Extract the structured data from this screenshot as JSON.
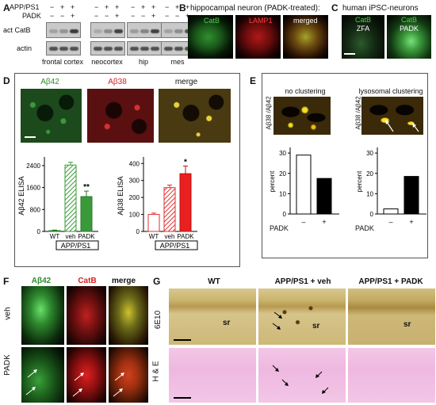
{
  "panel_letters": {
    "a": "A",
    "b": "B",
    "c": "C",
    "d": "D",
    "e": "E",
    "f": "F",
    "g": "G"
  },
  "panelA": {
    "row_app": "APP/PS1",
    "row_padk": "PADK",
    "row1_label": "act CatB",
    "row2_label": "actin",
    "regions": [
      "frontal cortex",
      "neocortex",
      "hip",
      "mes"
    ],
    "app_signs": [
      "−",
      "+",
      "+",
      "−",
      "+",
      "+",
      "−",
      "+",
      "+",
      "−",
      "+",
      "+"
    ],
    "padk_signs": [
      "−",
      "−",
      "+",
      "−",
      "−",
      "+",
      "−",
      "−",
      "+",
      "−",
      "−",
      "+"
    ],
    "catb_intensity": [
      0.25,
      0.35,
      0.95,
      0.2,
      0.4,
      0.9,
      0.3,
      0.45,
      0.9,
      0.25,
      0.4,
      0.8
    ]
  },
  "panelB": {
    "title": "hippocampal neuron (PADK-treated):",
    "labels": [
      "CatB",
      "LAMP1",
      "merged"
    ]
  },
  "panelC": {
    "title": "human iPSC-neurons",
    "labels": [
      "CatB",
      "CatB"
    ],
    "sublabels": [
      "ZFA",
      "PADK"
    ]
  },
  "panelD": {
    "labels": [
      "Aβ42",
      "Aβ38",
      "merge"
    ],
    "chart_left": {
      "ylabel": "Aβ42 ELISA",
      "yticks": [
        "0",
        "800",
        "1600",
        "2400"
      ],
      "categories": [
        "WT",
        "veh",
        "PADK"
      ],
      "values": [
        30,
        2420,
        1270
      ],
      "errors": [
        20,
        100,
        200
      ],
      "sig": "**",
      "group_label": "APP/PS1"
    },
    "chart_right": {
      "ylabel": "Aβ38 ELISA",
      "yticks": [
        "0",
        "100",
        "200",
        "300",
        "400"
      ],
      "categories": [
        "WT",
        "veh",
        "PADK"
      ],
      "values": [
        100,
        258,
        340
      ],
      "errors": [
        8,
        15,
        45
      ],
      "sig": "*",
      "group_label": "APP/PS1"
    }
  },
  "panelE": {
    "ylabel": "Aβ38 /Aβ42",
    "titles": [
      "no clustering",
      "lysosomal clustering"
    ],
    "axis_label": "percent",
    "yticks": [
      "0",
      "10",
      "20",
      "30"
    ],
    "x_title": "PADK",
    "left": {
      "signs": [
        "–",
        "+"
      ],
      "values": [
        29,
        17.5
      ]
    },
    "right": {
      "signs": [
        "–",
        "+"
      ],
      "values": [
        2.5,
        18.5
      ]
    }
  },
  "panelF": {
    "labels": [
      "Aβ42",
      "CatB",
      "merge"
    ],
    "rows": [
      "veh",
      "PADK"
    ]
  },
  "panelG": {
    "columns": [
      "WT",
      "APP/PS1 + veh",
      "APP/PS1 + PADK"
    ],
    "rows": [
      "6E10",
      "H & E"
    ],
    "sr": "sr"
  },
  "chart_data": [
    {
      "type": "bar",
      "title": "",
      "ylabel": "Aβ42 ELISA",
      "categories": [
        "WT",
        "veh",
        "PADK"
      ],
      "values": [
        30,
        2420,
        1270
      ],
      "ylim": [
        0,
        2600
      ]
    },
    {
      "type": "bar",
      "title": "",
      "ylabel": "Aβ38 ELISA",
      "categories": [
        "WT",
        "veh",
        "PADK"
      ],
      "values": [
        100,
        258,
        340
      ],
      "ylim": [
        0,
        420
      ]
    },
    {
      "type": "bar",
      "title": "no clustering",
      "ylabel": "percent",
      "categories": [
        "–",
        "+"
      ],
      "values": [
        29,
        17.5
      ],
      "ylim": [
        0,
        32
      ]
    },
    {
      "type": "bar",
      "title": "lysosomal clustering",
      "ylabel": "percent",
      "categories": [
        "–",
        "+"
      ],
      "values": [
        2.5,
        18.5
      ],
      "ylim": [
        0,
        32
      ]
    }
  ]
}
